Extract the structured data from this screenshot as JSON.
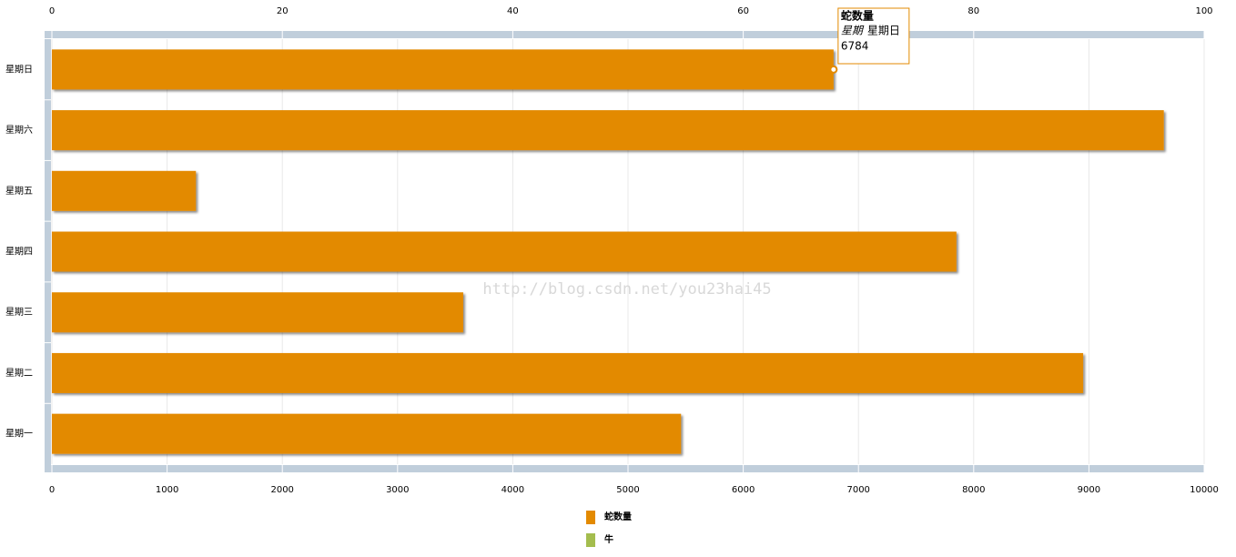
{
  "chart_data": {
    "type": "hbar",
    "categories": [
      "星期日",
      "星期六",
      "星期五",
      "星期四",
      "星期三",
      "星期二",
      "星期一"
    ],
    "series": [
      {
        "name": "蛇数量",
        "color": "#e38a00",
        "values": [
          6784,
          9650,
          1250,
          7850,
          3570,
          8950,
          5460
        ]
      },
      {
        "name": "牛",
        "color": "#a4bd4e",
        "values": [
          null,
          null,
          null,
          null,
          null,
          null,
          null
        ]
      }
    ],
    "xlim": [
      0,
      10000
    ],
    "xticks": [
      0,
      1000,
      2000,
      3000,
      4000,
      5000,
      6000,
      7000,
      8000,
      9000,
      10000
    ],
    "x2lim": [
      0,
      100
    ],
    "x2ticks": [
      0,
      20,
      40,
      60,
      80,
      100
    ],
    "grid": true,
    "tooltip": {
      "category_label": "星期",
      "category_index": 0
    },
    "watermark": "http://blog.csdn.net/you23hai45"
  }
}
